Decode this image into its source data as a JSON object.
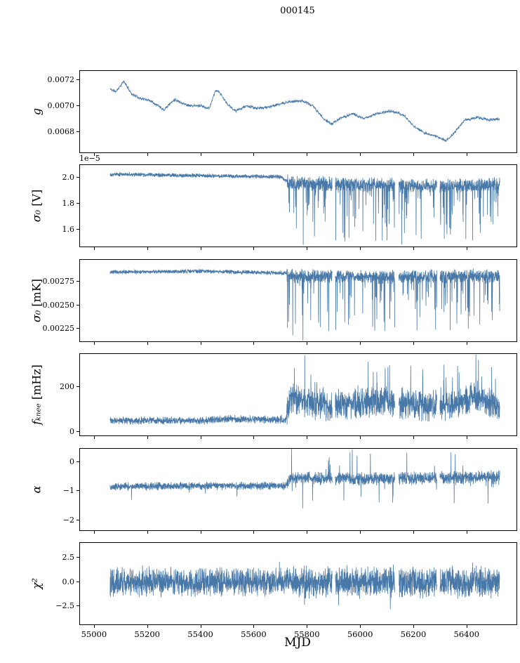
{
  "chart_data": {
    "type": "line",
    "title": "000145",
    "xlabel": "MJD",
    "line_color": "#4878a8",
    "x_range": [
      54945,
      56585
    ],
    "x_ticks": [
      55000,
      55200,
      55400,
      55600,
      55800,
      56000,
      56200,
      56400
    ],
    "x_tick_labels": [
      "55000",
      "55200",
      "55400",
      "55600",
      "55800",
      "56000",
      "56200",
      "56400"
    ],
    "data_start": 55058,
    "data_end": 56522,
    "break_x": 55722,
    "gaps": [
      [
        55893,
        55904
      ],
      [
        56128,
        56143
      ],
      [
        56286,
        56297
      ]
    ],
    "legend": "none",
    "grid": false,
    "panels": [
      {
        "name": "g",
        "ylabel": "g",
        "ylabel_sym": "g",
        "ylabel_unit": "",
        "ylim": [
          0.00664,
          0.00727
        ],
        "yticks": [
          0.0068,
          0.007,
          0.0072
        ],
        "ytick_labels": [
          "0.0068",
          "0.0070",
          "0.0072"
        ],
        "seed": 11,
        "apply_gaps": false,
        "n": 1600,
        "anchors": [
          [
            55058,
            0.00713
          ],
          [
            55080,
            0.00711
          ],
          [
            55110,
            0.00719
          ],
          [
            55140,
            0.00709
          ],
          [
            55170,
            0.00706
          ],
          [
            55210,
            0.00704
          ],
          [
            55240,
            0.007
          ],
          [
            55260,
            0.00697
          ],
          [
            55300,
            0.00705
          ],
          [
            55330,
            0.00702
          ],
          [
            55360,
            0.007
          ],
          [
            55400,
            0.007
          ],
          [
            55430,
            0.00698
          ],
          [
            55455,
            0.00712
          ],
          [
            55470,
            0.0071
          ],
          [
            55500,
            0.00701
          ],
          [
            55530,
            0.00696
          ],
          [
            55570,
            0.007
          ],
          [
            55610,
            0.00698
          ],
          [
            55650,
            0.00699
          ],
          [
            55690,
            0.00701
          ],
          [
            55730,
            0.00703
          ],
          [
            55780,
            0.00704
          ],
          [
            55820,
            0.007
          ],
          [
            55860,
            0.0069
          ],
          [
            55890,
            0.00686
          ],
          [
            55930,
            0.00691
          ],
          [
            55970,
            0.00694
          ],
          [
            56010,
            0.0069
          ],
          [
            56060,
            0.00694
          ],
          [
            56110,
            0.00696
          ],
          [
            56160,
            0.00693
          ],
          [
            56200,
            0.00684
          ],
          [
            56240,
            0.00679
          ],
          [
            56290,
            0.00676
          ],
          [
            56320,
            0.00673
          ],
          [
            56350,
            0.00679
          ],
          [
            56390,
            0.00689
          ],
          [
            56440,
            0.00691
          ],
          [
            56480,
            0.00689
          ],
          [
            56522,
            0.0069
          ]
        ],
        "segments": [
          {
            "x0": 55058,
            "x1": 56522,
            "noise": 1e-05,
            "spike_prob": 0,
            "spike_amp": 0,
            "spike_dir": 0
          }
        ]
      },
      {
        "name": "sigma0-v",
        "ylabel": "σ₀ [V]",
        "ylabel_sym": "σ₀",
        "ylabel_unit": " [V]",
        "offset_text": "1e−5",
        "ylim": [
          1.47,
          2.1
        ],
        "yticks": [
          1.6,
          1.8,
          2.0
        ],
        "ytick_labels": [
          "1.6",
          "1.8",
          "2.0"
        ],
        "seed": 22,
        "apply_gaps": true,
        "n": 2600,
        "anchors": [
          [
            55058,
            2.03
          ],
          [
            55300,
            2.02
          ],
          [
            55700,
            2.01
          ],
          [
            55730,
            1.96
          ],
          [
            56000,
            1.95
          ],
          [
            56300,
            1.94
          ],
          [
            56522,
            1.95
          ]
        ],
        "segments": [
          {
            "x0": 55058,
            "x1": 55722,
            "noise": 0.013,
            "spike_prob": 0.004,
            "spike_amp": 0.07,
            "spike_dir": -1
          },
          {
            "x0": 55722,
            "x1": 56522,
            "noise": 0.045,
            "spike_prob": 0.12,
            "spike_amp": 0.46,
            "spike_dir": -1
          }
        ]
      },
      {
        "name": "sigma0-mk",
        "ylabel": "σ₀ [mK]",
        "ylabel_sym": "σ₀",
        "ylabel_unit": " [mK]",
        "ylim": [
          0.00212,
          0.00298
        ],
        "yticks": [
          0.00225,
          0.0025,
          0.00275
        ],
        "ytick_labels": [
          "0.00225",
          "0.00250",
          "0.00275"
        ],
        "seed": 33,
        "apply_gaps": true,
        "n": 2600,
        "anchors": [
          [
            55058,
            0.00285
          ],
          [
            55400,
            0.00286
          ],
          [
            55720,
            0.00284
          ],
          [
            55730,
            0.00281
          ],
          [
            56100,
            0.0028
          ],
          [
            56522,
            0.00281
          ]
        ],
        "segments": [
          {
            "x0": 55058,
            "x1": 55722,
            "noise": 1.8e-05,
            "spike_prob": 0.003,
            "spike_amp": 9e-05,
            "spike_dir": -1
          },
          {
            "x0": 55722,
            "x1": 56522,
            "noise": 6e-05,
            "spike_prob": 0.12,
            "spike_amp": 0.00062,
            "spike_dir": -1
          }
        ]
      },
      {
        "name": "fknee",
        "ylabel": "fₖₙₑₑ [mHz]",
        "ylabel_sym": "fₖₙₑₑ",
        "ylabel_unit": " [mHz]",
        "ylim": [
          -16,
          345
        ],
        "yticks": [
          0,
          200
        ],
        "ytick_labels": [
          "0",
          "200"
        ],
        "seed": 44,
        "apply_gaps": true,
        "n": 2600,
        "floor": 4,
        "anchors": [
          [
            55058,
            50
          ],
          [
            55400,
            50
          ],
          [
            55500,
            58
          ],
          [
            55718,
            52
          ],
          [
            55735,
            150
          ],
          [
            55800,
            130
          ],
          [
            55900,
            110
          ],
          [
            56000,
            125
          ],
          [
            56100,
            135
          ],
          [
            56200,
            120
          ],
          [
            56300,
            110
          ],
          [
            56420,
            155
          ],
          [
            56522,
            110
          ]
        ],
        "segments": [
          {
            "x0": 55058,
            "x1": 55722,
            "noise": 14,
            "spike_prob": 0.004,
            "spike_amp": 45,
            "spike_dir": 1
          },
          {
            "x0": 55722,
            "x1": 56522,
            "noise": 55,
            "spike_prob": 0.05,
            "spike_amp": 170,
            "spike_dir": 1
          }
        ]
      },
      {
        "name": "alpha",
        "ylabel": "α",
        "ylabel_sym": "α",
        "ylabel_unit": "",
        "ylim": [
          -2.35,
          0.45
        ],
        "yticks": [
          -2,
          -1,
          0
        ],
        "ytick_labels": [
          "−2",
          "−1",
          "0"
        ],
        "seed": 55,
        "apply_gaps": true,
        "n": 2600,
        "anchors": [
          [
            55058,
            -0.85
          ],
          [
            55300,
            -0.83
          ],
          [
            55718,
            -0.82
          ],
          [
            55735,
            -0.55
          ],
          [
            56000,
            -0.58
          ],
          [
            56300,
            -0.55
          ],
          [
            56522,
            -0.52
          ]
        ],
        "segments": [
          {
            "x0": 55058,
            "x1": 55722,
            "noise": 0.11,
            "spike_prob": 0.006,
            "spike_amp": 0.45,
            "spike_dir": -1
          },
          {
            "x0": 55722,
            "x1": 56522,
            "noise": 0.18,
            "spike_prob": 0.04,
            "spike_amp": 0.95,
            "spike_dir": 0
          }
        ]
      },
      {
        "name": "chi2",
        "ylabel": "χ²",
        "ylabel_sym": "χ²",
        "ylabel_unit": "",
        "ylim": [
          -4.35,
          4.0
        ],
        "yticks": [
          -2.5,
          0,
          2.5
        ],
        "ytick_labels": [
          "−2.5",
          "0.0",
          "2.5"
        ],
        "seed": 66,
        "apply_gaps": true,
        "n": 2800,
        "anchors": [
          [
            55058,
            0
          ],
          [
            56522,
            0
          ]
        ],
        "segments": [
          {
            "x0": 55058,
            "x1": 55722,
            "noise": 1.15,
            "spike_prob": 0.01,
            "spike_amp": 1.3,
            "spike_dir": 0
          },
          {
            "x0": 55722,
            "x1": 56522,
            "noise": 1.3,
            "spike_prob": 0.02,
            "spike_amp": 1.7,
            "spike_dir": 0
          }
        ]
      }
    ]
  }
}
